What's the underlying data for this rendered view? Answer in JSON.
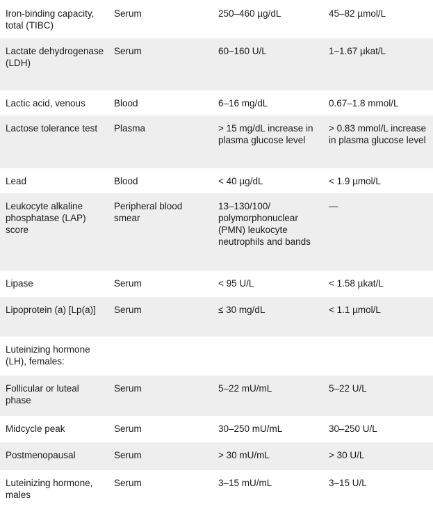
{
  "rows": [
    {
      "test": "Iron-binding capacity, total (TIBC)",
      "specimen": "Serum",
      "conventional": "250–460 µg/dL",
      "si": "45–82 µmol/L"
    },
    {
      "test": "Lactate dehydrogenase (LDH)",
      "specimen": "Serum",
      "conventional": "60–160 U/L",
      "si": "1–1.67 µkat/L"
    },
    {
      "test": "Lactic acid, venous",
      "specimen": "Blood",
      "conventional": "6–16 mg/dL",
      "si": "0.67–1.8 mmol/L"
    },
    {
      "test": "Lactose tolerance test",
      "specimen": "Plasma",
      "conventional": "> 15 mg/dL increase in plasma glucose level",
      "si": "> 0.83 mmol/L increase in plasma glucose level"
    },
    {
      "test": "Lead",
      "specimen": "Blood",
      "conventional": "< 40 µg/dL",
      "si": "< 1.9 µmol/L"
    },
    {
      "test": "Leukocyte alkaline phosphatase (LAP) score",
      "specimen": "Peripheral blood smear",
      "conventional": "13–130/100/ polymorphonuclear (PMN) leukocyte neutrophils and bands",
      "si": "—"
    },
    {
      "test": "Lipase",
      "specimen": "Serum",
      "conventional": "< 95 U/L",
      "si": "< 1.58 µkat/L"
    },
    {
      "test": "Lipoprotein (a) [Lp(a)]",
      "specimen": "Serum",
      "conventional": "≤ 30 mg/dL",
      "si": "< 1.1 µmol/L"
    },
    {
      "test": "Luteinizing hormone (LH), females:",
      "specimen": "",
      "conventional": "",
      "si": ""
    },
    {
      "test": "Follicular or luteal phase",
      "specimen": "Serum",
      "conventional": "5–22 mU/mL",
      "si": "5–22 U/L"
    },
    {
      "test": "Midcycle peak",
      "specimen": "Serum",
      "conventional": "30–250 mU/mL",
      "si": "30–250 U/L"
    },
    {
      "test": "Postmenopausal",
      "specimen": "Serum",
      "conventional": "> 30 mU/mL",
      "si": "> 30 U/L"
    },
    {
      "test": "Luteinizing hormone, males",
      "specimen": "Serum",
      "conventional": "3–15 mU/mL",
      "si": "3–15 U/L"
    }
  ]
}
